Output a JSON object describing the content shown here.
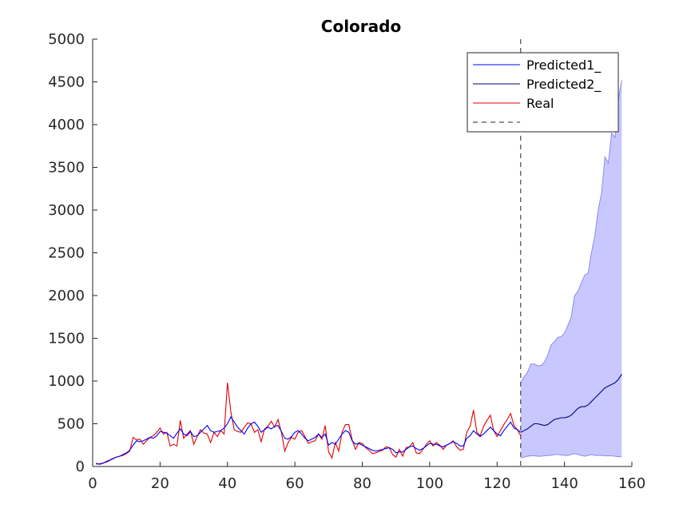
{
  "chart_data": {
    "type": "line",
    "title": "Colorado",
    "xlabel": "",
    "ylabel": "",
    "xlim": [
      0,
      160
    ],
    "ylim": [
      0,
      5000
    ],
    "xticks": [
      0,
      20,
      40,
      60,
      80,
      100,
      120,
      140,
      160
    ],
    "yticks": [
      0,
      500,
      1000,
      1500,
      2000,
      2500,
      3000,
      3500,
      4000,
      4500,
      5000
    ],
    "grid": false,
    "legend_position": "top-right",
    "vline_x": 127,
    "colors": {
      "predicted1": "#0000ff",
      "predicted2": "#00008b",
      "real": "#e00000",
      "band_fill": "#c8c8ff",
      "band_edge": "#8a8aee",
      "axis": "#262626"
    },
    "legend": [
      {
        "label": "Predicted1_",
        "style": "solid",
        "color": "#0000ff"
      },
      {
        "label": "Predicted2_",
        "style": "solid",
        "color": "#00008b"
      },
      {
        "label": "Real",
        "style": "solid",
        "color": "#e00000"
      },
      {
        "label": "",
        "style": "dashed",
        "color": "#262626"
      }
    ],
    "series": [
      {
        "key": "real",
        "x": [
          1,
          2,
          3,
          4,
          5,
          6,
          7,
          8,
          9,
          10,
          11,
          12,
          13,
          14,
          15,
          16,
          17,
          18,
          19,
          20,
          21,
          22,
          23,
          24,
          25,
          26,
          27,
          28,
          29,
          30,
          31,
          32,
          33,
          34,
          35,
          36,
          37,
          38,
          39,
          40,
          41,
          42,
          43,
          44,
          45,
          46,
          47,
          48,
          49,
          50,
          51,
          52,
          53,
          54,
          55,
          56,
          57,
          58,
          59,
          60,
          61,
          62,
          63,
          64,
          65,
          66,
          67,
          68,
          69,
          70,
          71,
          72,
          73,
          74,
          75,
          76,
          77,
          78,
          79,
          80,
          81,
          82,
          83,
          84,
          85,
          86,
          87,
          88,
          89,
          90,
          91,
          92,
          93,
          94,
          95,
          96,
          97,
          98,
          99,
          100,
          101,
          102,
          103,
          104,
          105,
          106,
          107,
          108,
          109,
          110,
          111,
          112,
          113,
          114,
          115,
          116,
          117,
          118,
          119,
          120,
          121,
          122,
          123,
          124,
          125,
          126,
          127
        ],
        "y": [
          40,
          25,
          35,
          60,
          75,
          95,
          110,
          120,
          130,
          150,
          180,
          340,
          310,
          320,
          260,
          300,
          340,
          360,
          400,
          450,
          380,
          400,
          240,
          260,
          240,
          540,
          330,
          380,
          420,
          260,
          350,
          430,
          390,
          380,
          280,
          400,
          350,
          420,
          380,
          980,
          640,
          430,
          410,
          400,
          460,
          510,
          500,
          400,
          430,
          290,
          440,
          470,
          530,
          460,
          550,
          400,
          180,
          280,
          340,
          320,
          400,
          420,
          350,
          270,
          290,
          300,
          380,
          320,
          480,
          170,
          100,
          280,
          180,
          400,
          490,
          490,
          310,
          200,
          280,
          270,
          220,
          190,
          150,
          160,
          175,
          190,
          230,
          220,
          140,
          110,
          200,
          120,
          220,
          230,
          280,
          160,
          150,
          200,
          260,
          300,
          240,
          280,
          250,
          200,
          250,
          270,
          300,
          230,
          190,
          200,
          400,
          470,
          660,
          400,
          360,
          470,
          540,
          600,
          420,
          350,
          420,
          490,
          550,
          620,
          480,
          430,
          360
        ]
      },
      {
        "key": "predicted1",
        "x": [
          1,
          2,
          3,
          4,
          5,
          6,
          7,
          8,
          9,
          10,
          11,
          12,
          13,
          14,
          15,
          16,
          17,
          18,
          19,
          20,
          21,
          22,
          23,
          24,
          25,
          26,
          27,
          28,
          29,
          30,
          31,
          32,
          33,
          34,
          35,
          36,
          37,
          38,
          39,
          40,
          41,
          42,
          43,
          44,
          45,
          46,
          47,
          48,
          49,
          50,
          51,
          52,
          53,
          54,
          55,
          56,
          57,
          58,
          59,
          60,
          61,
          62,
          63,
          64,
          65,
          66,
          67,
          68,
          69,
          70,
          71,
          72,
          73,
          74,
          75,
          76,
          77,
          78,
          79,
          80,
          81,
          82,
          83,
          84,
          85,
          86,
          87,
          88,
          89,
          90,
          91,
          92,
          93,
          94,
          95,
          96,
          97,
          98,
          99,
          100,
          101,
          102,
          103,
          104,
          105,
          106,
          107,
          108,
          109,
          110,
          111,
          112,
          113,
          114,
          115,
          116,
          117,
          118,
          119,
          120,
          121,
          122,
          123,
          124,
          125,
          126,
          127
        ],
        "y": [
          30,
          30,
          40,
          50,
          70,
          90,
          110,
          120,
          140,
          160,
          190,
          250,
          300,
          290,
          300,
          320,
          340,
          330,
          360,
          410,
          400,
          390,
          360,
          330,
          390,
          440,
          380,
          360,
          410,
          350,
          360,
          400,
          440,
          480,
          420,
          400,
          410,
          420,
          450,
          500,
          580,
          520,
          460,
          420,
          380,
          450,
          500,
          520,
          470,
          400,
          430,
          460,
          440,
          470,
          480,
          410,
          330,
          320,
          350,
          400,
          420,
          380,
          330,
          300,
          320,
          340,
          380,
          340,
          380,
          250,
          280,
          260,
          320,
          380,
          420,
          400,
          300,
          260,
          270,
          250,
          230,
          210,
          190,
          180,
          190,
          200,
          210,
          220,
          200,
          160,
          170,
          170,
          200,
          230,
          240,
          210,
          190,
          210,
          240,
          270,
          260,
          260,
          240,
          230,
          250,
          270,
          290,
          270,
          240,
          240,
          330,
          360,
          420,
          380,
          350,
          380,
          420,
          460,
          420,
          380,
          360,
          420,
          470,
          520,
          450,
          430,
          400
        ]
      },
      {
        "key": "predicted2",
        "x": [
          127,
          128,
          129,
          130,
          131,
          132,
          133,
          134,
          135,
          136,
          137,
          138,
          139,
          140,
          141,
          142,
          143,
          144,
          145,
          146,
          147,
          148,
          149,
          150,
          151,
          152,
          153,
          154,
          155,
          156,
          157
        ],
        "y": [
          400,
          420,
          440,
          470,
          500,
          500,
          490,
          480,
          490,
          520,
          550,
          560,
          570,
          570,
          580,
          600,
          640,
          680,
          700,
          700,
          720,
          760,
          800,
          840,
          880,
          920,
          940,
          960,
          980,
          1020,
          1080
        ]
      }
    ],
    "band": {
      "x": [
        127,
        128,
        129,
        130,
        131,
        132,
        133,
        134,
        135,
        136,
        137,
        138,
        139,
        140,
        141,
        142,
        143,
        144,
        145,
        146,
        147,
        148,
        149,
        150,
        151,
        152,
        153,
        154,
        155,
        156,
        157
      ],
      "upper": [
        980,
        1050,
        1100,
        1200,
        1200,
        1180,
        1180,
        1220,
        1300,
        1420,
        1460,
        1510,
        1520,
        1560,
        1650,
        1750,
        2000,
        2050,
        2150,
        2240,
        2260,
        2500,
        2700,
        3000,
        3200,
        3620,
        3550,
        3900,
        3850,
        4300,
        4520
      ],
      "lower": [
        100,
        110,
        120,
        125,
        125,
        120,
        120,
        125,
        130,
        130,
        140,
        140,
        135,
        130,
        130,
        140,
        150,
        140,
        130,
        120,
        130,
        140,
        130,
        130,
        130,
        125,
        125,
        125,
        120,
        115,
        115
      ]
    }
  }
}
